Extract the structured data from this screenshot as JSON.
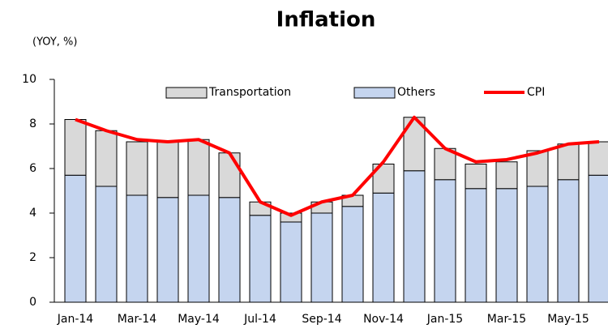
{
  "chart_data": {
    "type": "bar",
    "title": "Inflation",
    "y_label": "(YOY, %)",
    "categories": [
      "Jan-14",
      null,
      "Mar-14",
      null,
      "May-14",
      null,
      "Jul-14",
      null,
      "Sep-14",
      null,
      "Nov-14",
      null,
      "Jan-15",
      null,
      "Mar-15",
      null,
      "May-15",
      null
    ],
    "series": [
      {
        "name": "Transportation",
        "type": "bar",
        "color": "#d9d9d9",
        "values": [
          2.5,
          2.5,
          2.4,
          2.5,
          2.5,
          2.0,
          0.6,
          0.4,
          0.5,
          0.5,
          1.3,
          2.4,
          1.4,
          1.1,
          1.2,
          1.6,
          1.6,
          1.5
        ]
      },
      {
        "name": "Others",
        "type": "bar",
        "color": "#c5d5ef",
        "values": [
          5.7,
          5.2,
          4.8,
          4.7,
          4.8,
          4.7,
          3.9,
          3.6,
          4.0,
          4.3,
          4.9,
          5.9,
          5.5,
          5.1,
          5.1,
          5.2,
          5.5,
          5.7
        ]
      },
      {
        "name": "CPI",
        "type": "line",
        "color": "#ff0000",
        "values": [
          8.2,
          7.7,
          7.3,
          7.2,
          7.3,
          6.7,
          4.5,
          3.9,
          4.5,
          4.8,
          6.3,
          8.3,
          6.9,
          6.3,
          6.4,
          6.7,
          7.1,
          7.2
        ]
      }
    ],
    "stacked": true,
    "ylim": [
      0,
      10
    ],
    "yticks": [
      0,
      2,
      4,
      6,
      8,
      10
    ],
    "grid": false,
    "legend": "top"
  }
}
